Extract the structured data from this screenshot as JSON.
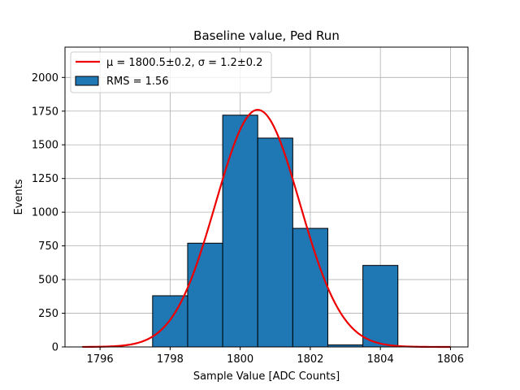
{
  "chart_data": {
    "type": "bar",
    "title": "Baseline value, Ped Run",
    "xlabel": "Sample Value [ADC Counts]",
    "ylabel": "Events",
    "xlim": [
      1795.0,
      1806.5
    ],
    "ylim": [
      0,
      2225
    ],
    "xticks": [
      1796,
      1798,
      1800,
      1802,
      1804,
      1806
    ],
    "yticks": [
      0,
      250,
      500,
      750,
      1000,
      1250,
      1500,
      1750,
      2000
    ],
    "grid": true,
    "legend_position": "top-left",
    "bin_edges": [
      1795.5,
      1796.5,
      1797.5,
      1798.5,
      1799.5,
      1800.5,
      1801.5,
      1802.5,
      1803.5,
      1804.5
    ],
    "values": [
      3,
      0,
      380,
      770,
      1720,
      1550,
      880,
      15,
      605
    ],
    "fit": {
      "mu": 1800.5,
      "sigma": 1.2,
      "amplitude": 1760,
      "x_range": [
        1795.5,
        1806.0
      ]
    },
    "legend": [
      {
        "label": "$\\mu = 1800.5 \\pm 0.2$, $\\sigma = 1.2 \\pm 0.2$",
        "display": "μ = 1800.5±0.2, σ = 1.2±0.2",
        "kind": "line"
      },
      {
        "label": "RMS = 1.56",
        "display": "RMS = 1.56",
        "kind": "patch"
      }
    ],
    "colors": {
      "bar_fill": "#1f77b4",
      "bar_edge": "#000000",
      "fit_line": "#ee0000",
      "grid": "#b0b0b0"
    }
  }
}
